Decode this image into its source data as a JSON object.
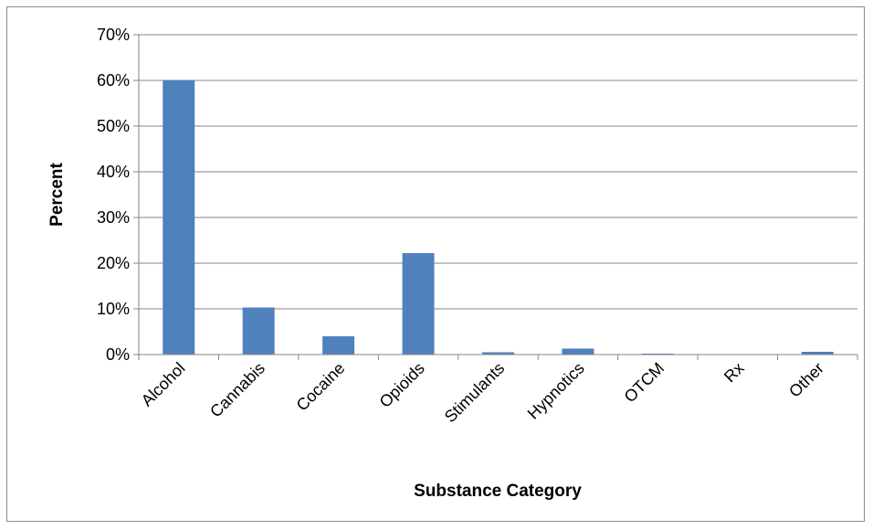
{
  "chart_data": {
    "type": "bar",
    "title": "",
    "xlabel": "Substance Category",
    "ylabel": "Percent",
    "categories": [
      "Alcohol",
      "Cannabis",
      "Cocaine",
      "Opioids",
      "Stimulants",
      "Hypnotics",
      "OTCM",
      "Rx",
      "Other"
    ],
    "values": [
      60.0,
      10.3,
      4.0,
      22.2,
      0.5,
      1.3,
      0.2,
      0.1,
      0.6
    ],
    "ylim": [
      0,
      70
    ],
    "yticks": [
      "0%",
      "10%",
      "20%",
      "30%",
      "40%",
      "50%",
      "60%",
      "70%"
    ],
    "grid": true,
    "legend": "none",
    "bar_color": "#4f81bd"
  }
}
